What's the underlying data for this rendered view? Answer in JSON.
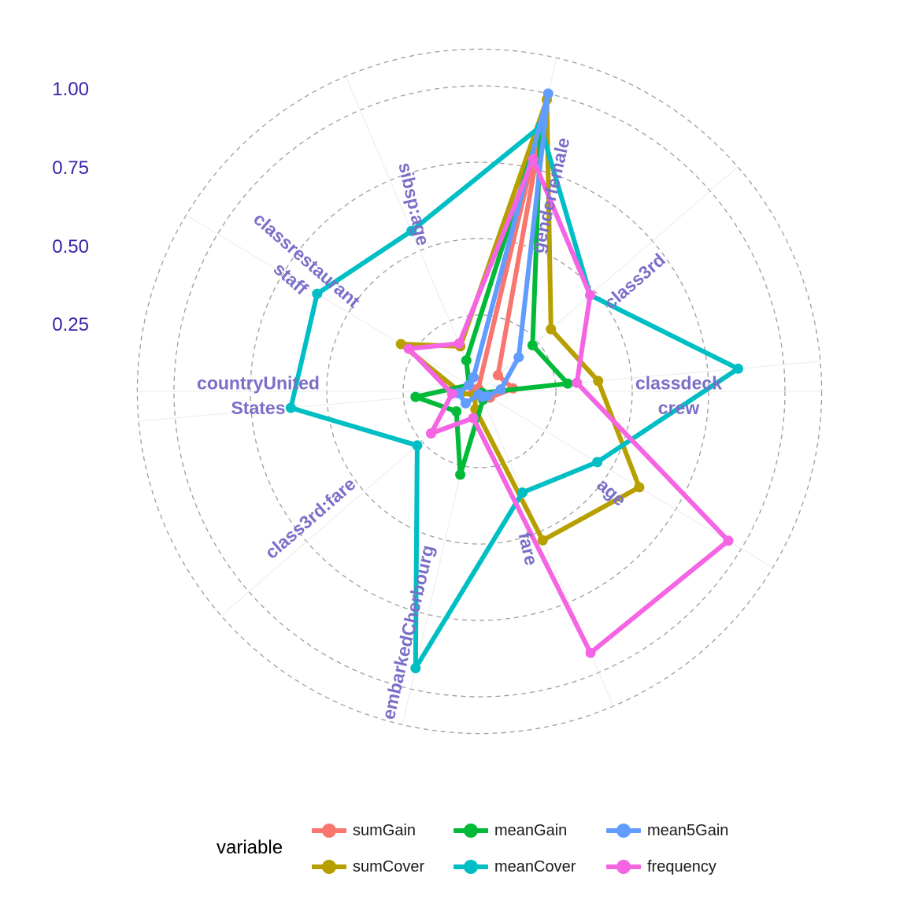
{
  "chart_data": {
    "type": "radar",
    "categories": [
      "genderfemale",
      "class3rd",
      "classdeck crew",
      "age",
      "fare",
      "embarkedCherbourg",
      "class3rd:fare",
      "countryUnited States",
      "classrestaurant staff",
      "sibsp:age"
    ],
    "r_ticks": [
      "1.00",
      "0.75",
      "0.50",
      "0.25"
    ],
    "rlim": [
      0,
      1
    ],
    "grid": true,
    "legend_title": "variable",
    "legend_position": "bottom",
    "series": [
      {
        "name": "sumGain",
        "color": "#F8766D",
        "values": [
          0.98,
          0.08,
          0.11,
          0.04,
          0.03,
          0.01,
          0.01,
          0.02,
          0.01,
          0.01
        ]
      },
      {
        "name": "sumCover",
        "color": "#B79F00",
        "values": [
          0.98,
          0.31,
          0.39,
          0.61,
          0.53,
          0.06,
          0.02,
          0.06,
          0.3,
          0.16
        ]
      },
      {
        "name": "meanGain",
        "color": "#00BA38",
        "values": [
          0.89,
          0.23,
          0.29,
          0.01,
          0.03,
          0.28,
          0.1,
          0.21,
          0.04,
          0.11
        ]
      },
      {
        "name": "meanCover",
        "color": "#00BFC4",
        "values": [
          0.89,
          0.48,
          0.85,
          0.45,
          0.36,
          0.93,
          0.27,
          0.62,
          0.62,
          0.57
        ]
      },
      {
        "name": "mean5Gain",
        "color": "#619CFF",
        "values": [
          1.0,
          0.17,
          0.07,
          0.03,
          0.02,
          0.01,
          0.06,
          0.07,
          0.04,
          0.05
        ]
      },
      {
        "name": "frequency",
        "color": "#F564E3",
        "values": [
          0.78,
          0.48,
          0.32,
          0.95,
          0.93,
          0.09,
          0.21,
          0.09,
          0.27,
          0.17
        ]
      }
    ],
    "label_color": "#7A6FC8",
    "tick_color": "#3A1FA8"
  }
}
